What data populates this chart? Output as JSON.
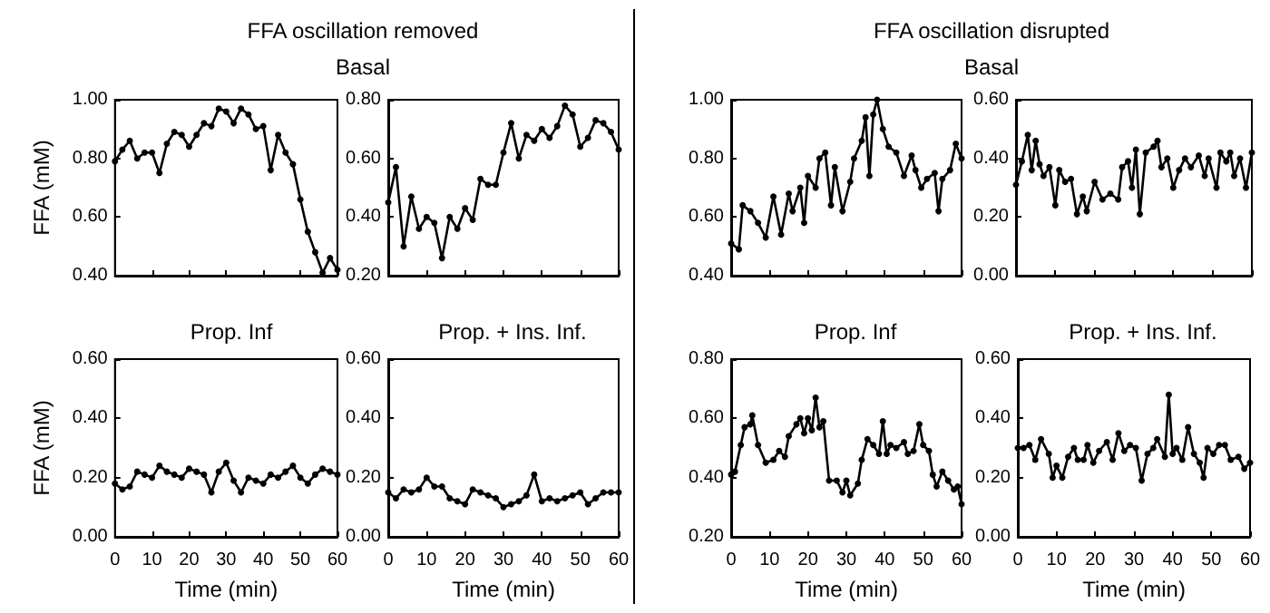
{
  "chart_data": [
    {
      "type": "line",
      "title": "FFA oscillation removed",
      "subtitle": "Basal",
      "ylabel": "FFA (mM)",
      "tick_labels": "y",
      "marker": "circle",
      "line_style": "solid",
      "grid": false,
      "xlim": [
        0,
        60
      ],
      "xticks": [
        0,
        10,
        20,
        30,
        40,
        50,
        60
      ],
      "ylim": [
        0.4,
        1.0
      ],
      "yticks": [
        {
          "value": 0.4,
          "label": "0.40"
        },
        {
          "value": 0.6,
          "label": "0.60"
        },
        {
          "value": 0.8,
          "label": "0.80"
        },
        {
          "value": 1.0,
          "label": "1.00"
        }
      ],
      "series": [
        {
          "color": "#000000",
          "x": [
            0,
            2,
            4,
            6,
            8,
            10,
            12,
            14,
            16,
            18,
            20,
            22,
            24,
            26,
            28,
            30,
            32,
            34,
            36,
            38,
            40,
            42,
            44,
            46,
            48,
            50,
            52,
            54,
            56,
            58,
            60
          ],
          "values": [
            0.79,
            0.83,
            0.86,
            0.8,
            0.82,
            0.82,
            0.75,
            0.85,
            0.89,
            0.88,
            0.84,
            0.88,
            0.92,
            0.91,
            0.97,
            0.96,
            0.92,
            0.97,
            0.95,
            0.9,
            0.91,
            0.76,
            0.88,
            0.82,
            0.78,
            0.66,
            0.55,
            0.48,
            0.41,
            0.46,
            0.42
          ]
        }
      ]
    },
    {
      "type": "line",
      "tick_labels": "y",
      "marker": "circle",
      "line_style": "solid",
      "grid": false,
      "xlim": [
        0,
        60
      ],
      "xticks": [
        0,
        10,
        20,
        30,
        40,
        50,
        60
      ],
      "ylim": [
        0.2,
        0.8
      ],
      "yticks": [
        {
          "value": 0.2,
          "label": "0.20"
        },
        {
          "value": 0.4,
          "label": "0.40"
        },
        {
          "value": 0.6,
          "label": "0.60"
        },
        {
          "value": 0.8,
          "label": "0.80"
        }
      ],
      "series": [
        {
          "color": "#000000",
          "x": [
            0,
            2,
            4,
            6,
            8,
            10,
            12,
            14,
            16,
            18,
            20,
            22,
            24,
            26,
            28,
            30,
            32,
            34,
            36,
            38,
            40,
            42,
            44,
            46,
            48,
            50,
            52,
            54,
            56,
            58,
            60
          ],
          "values": [
            0.45,
            0.57,
            0.3,
            0.47,
            0.36,
            0.4,
            0.38,
            0.26,
            0.4,
            0.36,
            0.43,
            0.39,
            0.53,
            0.51,
            0.51,
            0.62,
            0.72,
            0.6,
            0.68,
            0.66,
            0.7,
            0.67,
            0.71,
            0.78,
            0.75,
            0.64,
            0.67,
            0.73,
            0.72,
            0.69,
            0.63
          ]
        }
      ]
    },
    {
      "type": "line",
      "title": "Prop. Inf",
      "ylabel": "FFA (mM)",
      "xlabel": "Time (min)",
      "marker": "circle",
      "line_style": "solid",
      "grid": false,
      "xlim": [
        0,
        60
      ],
      "xticks": [
        0,
        10,
        20,
        30,
        40,
        50,
        60
      ],
      "ylim": [
        0,
        0.6
      ],
      "yticks": [
        {
          "value": 0,
          "label": "0.00"
        },
        {
          "value": 0.2,
          "label": "0.20"
        },
        {
          "value": 0.4,
          "label": "0.40"
        },
        {
          "value": 0.6,
          "label": "0.60"
        }
      ],
      "series": [
        {
          "color": "#000000",
          "x": [
            0,
            2,
            4,
            6,
            8,
            10,
            12,
            14,
            16,
            18,
            20,
            22,
            24,
            26,
            28,
            30,
            32,
            34,
            36,
            38,
            40,
            42,
            44,
            46,
            48,
            50,
            52,
            54,
            56,
            58,
            60
          ],
          "values": [
            0.18,
            0.16,
            0.17,
            0.22,
            0.21,
            0.2,
            0.24,
            0.22,
            0.21,
            0.2,
            0.23,
            0.22,
            0.21,
            0.15,
            0.22,
            0.25,
            0.19,
            0.15,
            0.2,
            0.19,
            0.18,
            0.21,
            0.2,
            0.22,
            0.24,
            0.2,
            0.18,
            0.21,
            0.23,
            0.22,
            0.21
          ]
        }
      ]
    },
    {
      "type": "line",
      "title": "Prop. + Ins. Inf.",
      "xlabel": "Time (min)",
      "marker": "circle",
      "line_style": "solid",
      "grid": false,
      "xlim": [
        0,
        60
      ],
      "xticks": [
        0,
        10,
        20,
        30,
        40,
        50,
        60
      ],
      "ylim": [
        0,
        0.6
      ],
      "yticks": [
        {
          "value": 0,
          "label": "0.00"
        },
        {
          "value": 0.2,
          "label": "0.20"
        },
        {
          "value": 0.4,
          "label": "0.40"
        },
        {
          "value": 0.6,
          "label": "0.60"
        }
      ],
      "series": [
        {
          "color": "#000000",
          "x": [
            0,
            2,
            4,
            6,
            8,
            10,
            12,
            14,
            16,
            18,
            20,
            22,
            24,
            26,
            28,
            30,
            32,
            34,
            36,
            38,
            40,
            42,
            44,
            46,
            48,
            50,
            52,
            54,
            56,
            58,
            60
          ],
          "values": [
            0.15,
            0.13,
            0.16,
            0.15,
            0.16,
            0.2,
            0.17,
            0.17,
            0.13,
            0.12,
            0.11,
            0.16,
            0.15,
            0.14,
            0.13,
            0.1,
            0.11,
            0.12,
            0.14,
            0.21,
            0.12,
            0.13,
            0.12,
            0.13,
            0.14,
            0.15,
            0.11,
            0.13,
            0.15,
            0.15,
            0.15
          ]
        }
      ]
    },
    {
      "type": "line",
      "title": "FFA oscillation disrupted",
      "subtitle": "Basal",
      "tick_labels": "y",
      "marker": "circle",
      "line_style": "solid",
      "grid": false,
      "xlim": [
        0,
        60
      ],
      "xticks": [
        0,
        10,
        20,
        30,
        40,
        50,
        60
      ],
      "ylim": [
        0.4,
        1.0
      ],
      "yticks": [
        {
          "value": 0.4,
          "label": "0.40"
        },
        {
          "value": 0.6,
          "label": "0.60"
        },
        {
          "value": 0.8,
          "label": "0.80"
        },
        {
          "value": 1.0,
          "label": "1.00"
        }
      ],
      "series": [
        {
          "color": "#000000",
          "x": [
            0,
            2,
            3,
            5,
            7,
            9,
            11,
            13,
            15,
            16,
            18,
            19,
            20,
            22,
            23,
            24.5,
            26,
            27,
            29,
            31,
            32,
            34,
            35,
            36,
            37,
            38,
            39.5,
            41,
            43,
            45,
            47,
            48,
            49.5,
            51,
            53,
            54,
            55,
            57,
            58.5,
            60
          ],
          "values": [
            0.51,
            0.49,
            0.64,
            0.62,
            0.58,
            0.53,
            0.67,
            0.54,
            0.68,
            0.62,
            0.7,
            0.58,
            0.74,
            0.7,
            0.8,
            0.82,
            0.64,
            0.77,
            0.62,
            0.72,
            0.8,
            0.86,
            0.94,
            0.74,
            0.95,
            1.0,
            0.9,
            0.84,
            0.82,
            0.74,
            0.81,
            0.76,
            0.7,
            0.73,
            0.75,
            0.62,
            0.73,
            0.76,
            0.85,
            0.8
          ]
        }
      ]
    },
    {
      "type": "line",
      "tick_labels": "y",
      "marker": "circle",
      "line_style": "solid",
      "grid": false,
      "xlim": [
        0,
        60
      ],
      "xticks": [
        0,
        10,
        20,
        30,
        40,
        50,
        60
      ],
      "ylim": [
        0,
        0.6
      ],
      "yticks": [
        {
          "value": 0,
          "label": "0.00"
        },
        {
          "value": 0.2,
          "label": "0.20"
        },
        {
          "value": 0.4,
          "label": "0.40"
        },
        {
          "value": 0.6,
          "label": "0.60"
        }
      ],
      "series": [
        {
          "color": "#000000",
          "x": [
            0,
            1.5,
            3,
            4,
            5,
            6,
            7,
            8.5,
            10,
            11,
            12.5,
            14,
            15.5,
            17,
            18,
            20,
            22,
            24,
            26,
            27,
            28.5,
            29.5,
            30.5,
            31.5,
            33,
            35,
            36,
            37,
            38.5,
            40,
            41.5,
            43,
            44.5,
            46.5,
            48,
            49,
            51,
            52,
            53.5,
            54.5,
            55.5,
            57,
            58.5,
            60
          ],
          "values": [
            0.31,
            0.39,
            0.48,
            0.36,
            0.46,
            0.38,
            0.34,
            0.37,
            0.24,
            0.36,
            0.32,
            0.33,
            0.21,
            0.27,
            0.22,
            0.32,
            0.26,
            0.28,
            0.26,
            0.37,
            0.39,
            0.3,
            0.43,
            0.21,
            0.42,
            0.44,
            0.46,
            0.37,
            0.4,
            0.3,
            0.36,
            0.4,
            0.37,
            0.41,
            0.34,
            0.4,
            0.3,
            0.42,
            0.39,
            0.42,
            0.34,
            0.4,
            0.3,
            0.42
          ]
        }
      ]
    },
    {
      "type": "line",
      "title": "Prop. Inf",
      "xlabel": "Time (min)",
      "marker": "circle",
      "line_style": "solid",
      "grid": false,
      "xlim": [
        0,
        60
      ],
      "xticks": [
        0,
        10,
        20,
        30,
        40,
        50,
        60
      ],
      "ylim": [
        0.2,
        0.8
      ],
      "yticks": [
        {
          "value": 0.2,
          "label": "0.20"
        },
        {
          "value": 0.4,
          "label": "0.40"
        },
        {
          "value": 0.6,
          "label": "0.60"
        },
        {
          "value": 0.8,
          "label": "0.80"
        }
      ],
      "series": [
        {
          "color": "#000000",
          "x": [
            0,
            1,
            2.5,
            3.5,
            5,
            5.5,
            7,
            9,
            11,
            12.5,
            14,
            15,
            17,
            18,
            19,
            20,
            21,
            22,
            23,
            24,
            25.5,
            27.5,
            29,
            30,
            31,
            33,
            34,
            35.5,
            37,
            38.5,
            39.5,
            40.5,
            41.5,
            43,
            45,
            46,
            47.5,
            49,
            50,
            51.5,
            52.5,
            53.5,
            55,
            56.5,
            58,
            59,
            60
          ],
          "values": [
            0.41,
            0.42,
            0.51,
            0.57,
            0.58,
            0.61,
            0.51,
            0.45,
            0.46,
            0.49,
            0.47,
            0.54,
            0.58,
            0.6,
            0.55,
            0.6,
            0.56,
            0.67,
            0.57,
            0.59,
            0.39,
            0.39,
            0.35,
            0.39,
            0.34,
            0.38,
            0.46,
            0.53,
            0.51,
            0.48,
            0.59,
            0.48,
            0.51,
            0.5,
            0.52,
            0.48,
            0.49,
            0.58,
            0.51,
            0.49,
            0.41,
            0.37,
            0.42,
            0.39,
            0.36,
            0.37,
            0.31
          ]
        }
      ]
    },
    {
      "type": "line",
      "title": "Prop. + Ins. Inf.",
      "xlabel": "Time (min)",
      "marker": "circle",
      "line_style": "solid",
      "grid": false,
      "xlim": [
        0,
        60
      ],
      "xticks": [
        0,
        10,
        20,
        30,
        40,
        50,
        60
      ],
      "ylim": [
        0,
        0.6
      ],
      "yticks": [
        {
          "value": 0,
          "label": "0.00"
        },
        {
          "value": 0.2,
          "label": "0.20"
        },
        {
          "value": 0.4,
          "label": "0.40"
        },
        {
          "value": 0.6,
          "label": "0.60"
        }
      ],
      "series": [
        {
          "color": "#000000",
          "x": [
            0,
            1.5,
            3,
            4.5,
            6,
            8,
            9,
            10,
            11.5,
            13,
            14.5,
            15.5,
            17,
            18,
            19.5,
            21,
            23,
            24.5,
            26,
            27.5,
            29,
            30.5,
            32,
            33.5,
            35,
            36,
            38,
            39,
            40,
            41,
            42.5,
            44,
            45.5,
            47,
            48,
            49,
            50.5,
            52,
            53.5,
            55,
            57,
            58.5,
            60
          ],
          "values": [
            0.3,
            0.3,
            0.31,
            0.26,
            0.33,
            0.28,
            0.2,
            0.24,
            0.2,
            0.27,
            0.3,
            0.26,
            0.26,
            0.31,
            0.25,
            0.29,
            0.32,
            0.26,
            0.35,
            0.29,
            0.31,
            0.3,
            0.19,
            0.28,
            0.3,
            0.33,
            0.27,
            0.48,
            0.28,
            0.3,
            0.26,
            0.37,
            0.28,
            0.25,
            0.2,
            0.3,
            0.28,
            0.31,
            0.31,
            0.26,
            0.27,
            0.23,
            0.25
          ]
        }
      ]
    }
  ]
}
